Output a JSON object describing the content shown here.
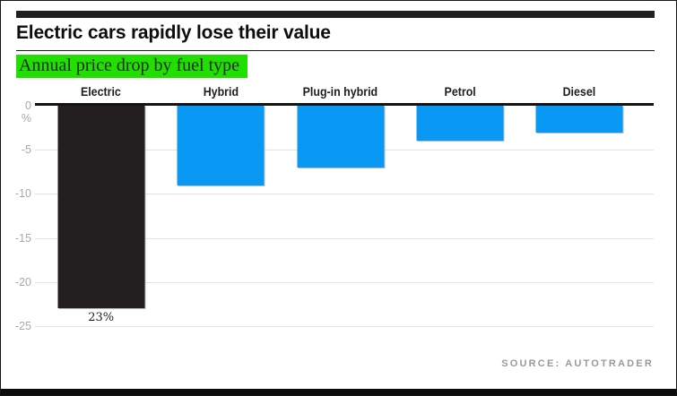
{
  "header": {
    "title": "Electric cars rapidly lose their value",
    "subtitle": "Annual price drop by fuel type"
  },
  "chart_data": {
    "type": "bar",
    "title": "Electric cars rapidly lose their value",
    "subtitle": "Annual price drop by fuel type",
    "categories": [
      "Electric",
      "Hybrid",
      "Plug-in hybrid",
      "Petrol",
      "Diesel"
    ],
    "values": [
      -23,
      -9,
      -7,
      -4,
      -3
    ],
    "data_labels": [
      "23%",
      "",
      "",
      "",
      ""
    ],
    "bar_colors": [
      "#231f20",
      "#0999f4",
      "#0999f4",
      "#0999f4",
      "#0999f4"
    ],
    "xlabel": "",
    "ylabel": "%",
    "yticks": [
      0,
      -5,
      -10,
      -15,
      -20,
      -25
    ],
    "ylim": [
      -25,
      0
    ],
    "grid": true,
    "legend": "none"
  },
  "footer": {
    "source": "SOURCE: AUTOTRADER"
  },
  "colors": {
    "accent_blue": "#0999f4",
    "bar_black": "#231f20",
    "highlight_green": "#21df00",
    "gridline": "#e2e2e2",
    "axis": "#141414",
    "tick_label": "#a8a8a8",
    "source_text": "#9a9a9a"
  }
}
